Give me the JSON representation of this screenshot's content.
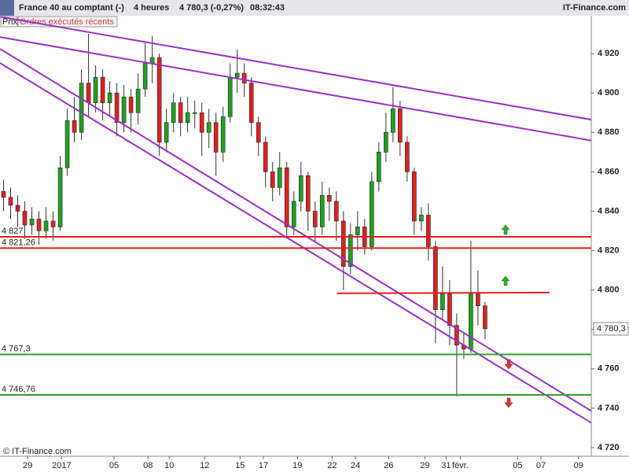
{
  "header": {
    "title": "France 40 au comptant (-)",
    "timeframe": "4 heures",
    "quote": "4 780,3 (-0,27%)",
    "time": "08:32:43",
    "site": "IT-Finance.com"
  },
  "tabs": [
    "Prix",
    "Ordres exécutés récents"
  ],
  "footer": "© IT-Finance.com",
  "chart_data": {
    "type": "candlestick",
    "x": [
      0.5,
      1.5,
      2.5,
      3.5,
      4.5,
      5.5,
      6.5,
      7.5,
      8.5,
      9.5,
      10.5,
      11.5,
      12.5,
      13.5,
      14.5,
      15.5,
      16.5,
      17.5,
      18.5,
      19.5,
      20.5,
      21.5,
      22.5,
      23.5,
      24.5,
      25.5,
      26.5,
      27.5,
      28.5,
      29.5,
      30.5,
      31.5,
      32.5,
      33.5,
      34.5,
      35.5,
      36.5,
      37.5,
      38.5,
      39.5,
      40.5,
      41.5,
      42.5,
      43.5,
      44.5,
      45.5,
      46.5,
      47.5,
      48.5,
      49.5,
      50.5,
      51.5,
      52.5,
      53.5,
      54.5,
      55.5,
      56.5,
      57.5,
      58.5,
      59.5,
      60.5,
      61.5,
      62.5,
      63.5,
      64.5,
      65.5,
      66.5,
      67.5,
      68.5
    ],
    "open": [
      4850,
      4847,
      4843,
      4840,
      4833,
      4836,
      4830,
      4835,
      4832,
      4862,
      4886,
      4880,
      4905,
      4895,
      4908,
      4895,
      4900,
      4885,
      4898,
      4890,
      4902,
      4915,
      4918,
      4875,
      4885,
      4895,
      4885,
      4890,
      4890,
      4880,
      4885,
      4870,
      4888,
      4908,
      4910,
      4905,
      4885,
      4875,
      4860,
      4852,
      4862,
      4832,
      4845,
      4858,
      4840,
      4832,
      4848,
      4845,
      4835,
      4812,
      4828,
      4832,
      4822,
      4855,
      4870,
      4880,
      4892,
      4875,
      4860,
      4835,
      4838,
      4822,
      4790,
      4798,
      4782,
      4772,
      4770,
      4798,
      4792
    ],
    "high": [
      4856,
      4852,
      4848,
      4845,
      4842,
      4840,
      4842,
      4840,
      4868,
      4892,
      4898,
      4912,
      4930,
      4914,
      4912,
      4906,
      4905,
      4904,
      4902,
      4910,
      4926,
      4929,
      4920,
      4892,
      4900,
      4898,
      4898,
      4896,
      4895,
      4892,
      4890,
      4893,
      4915,
      4922,
      4915,
      4908,
      4888,
      4878,
      4865,
      4870,
      4865,
      4850,
      4865,
      4860,
      4845,
      4855,
      4852,
      4850,
      4840,
      4834,
      4840,
      4836,
      4860,
      4875,
      4890,
      4903,
      4896,
      4878,
      4862,
      4842,
      4844,
      4825,
      4812,
      4805,
      4788,
      4778,
      4825,
      4810,
      4794
    ],
    "low": [
      4840,
      4836,
      4832,
      4826,
      4828,
      4823,
      4826,
      4825,
      4830,
      4858,
      4875,
      4876,
      4888,
      4890,
      4886,
      4888,
      4878,
      4880,
      4880,
      4884,
      4898,
      4905,
      4868,
      4870,
      4880,
      4878,
      4880,
      4882,
      4868,
      4872,
      4858,
      4865,
      4885,
      4900,
      4898,
      4878,
      4868,
      4852,
      4845,
      4848,
      4826,
      4828,
      4840,
      4830,
      4825,
      4828,
      4835,
      4825,
      4800,
      4808,
      4820,
      4818,
      4820,
      4850,
      4865,
      4875,
      4868,
      4855,
      4828,
      4830,
      4815,
      4773,
      4785,
      4772,
      4746,
      4765,
      4768,
      4782,
      4775
    ],
    "close": [
      4847,
      4843,
      4840,
      4833,
      4836,
      4830,
      4835,
      4832,
      4862,
      4886,
      4880,
      4905,
      4895,
      4908,
      4895,
      4900,
      4885,
      4898,
      4890,
      4902,
      4915,
      4918,
      4875,
      4885,
      4895,
      4885,
      4890,
      4890,
      4880,
      4885,
      4870,
      4888,
      4908,
      4910,
      4905,
      4885,
      4875,
      4860,
      4852,
      4862,
      4832,
      4845,
      4858,
      4840,
      4832,
      4848,
      4845,
      4835,
      4812,
      4828,
      4832,
      4822,
      4855,
      4870,
      4880,
      4892,
      4875,
      4860,
      4835,
      4838,
      4822,
      4790,
      4798,
      4782,
      4772,
      4770,
      4798,
      4792,
      4780.3
    ],
    "up_color": "#22a022",
    "down_color": "#dd2222",
    "xlim": [
      0,
      83.5
    ],
    "xticks": [
      {
        "value": 3.9,
        "label": "29"
      },
      {
        "value": 8.7,
        "label": "2017"
      },
      {
        "value": 16.1,
        "label": "05"
      },
      {
        "value": 20.9,
        "label": "08"
      },
      {
        "value": 23.9,
        "label": "10"
      },
      {
        "value": 28.9,
        "label": "12"
      },
      {
        "value": 33.9,
        "label": "15"
      },
      {
        "value": 37.2,
        "label": "17"
      },
      {
        "value": 42,
        "label": "19"
      },
      {
        "value": 46.9,
        "label": "22"
      },
      {
        "value": 50.2,
        "label": "24"
      },
      {
        "value": 54.9,
        "label": "26"
      },
      {
        "value": 60,
        "label": "29"
      },
      {
        "value": 63,
        "label": "31"
      },
      {
        "value": 65,
        "label": "févr."
      },
      {
        "value": 73.1,
        "label": "05"
      },
      {
        "value": 76.4,
        "label": "07"
      },
      {
        "value": 81.7,
        "label": "09"
      }
    ],
    "ylim": [
      4715.6,
      4939.2
    ],
    "yticks": [
      {
        "value": 4720,
        "label": "4 720"
      },
      {
        "value": 4740,
        "label": "4 740"
      },
      {
        "value": 4760,
        "label": "4 760"
      },
      {
        "value": 4780,
        "label": "4 780"
      },
      {
        "value": 4800,
        "label": "4 800"
      },
      {
        "value": 4820,
        "label": "4 820"
      },
      {
        "value": 4840,
        "label": "4 840"
      },
      {
        "value": 4860,
        "label": "4 860"
      },
      {
        "value": 4880,
        "label": "4 880"
      },
      {
        "value": 4900,
        "label": "4 900"
      },
      {
        "value": 4920,
        "label": "4 920"
      }
    ],
    "trendlines": [
      {
        "x": [
          0,
          86
        ],
        "y": [
          4938.7,
          4884.9
        ],
        "color": "#9b30c8"
      },
      {
        "x": [
          0,
          86
        ],
        "y": [
          4928.4,
          4874.3
        ],
        "color": "#9b30c8"
      },
      {
        "x": [
          0,
          86
        ],
        "y": [
          4922.4,
          4733.1
        ],
        "color": "#9b30c8"
      },
      {
        "x": [
          0,
          86
        ],
        "y": [
          4915.2,
          4727.1
        ],
        "color": "#9b30c8"
      },
      {
        "x": [
          47.6,
          77.6
        ],
        "y": [
          4798.3,
          4798.7
        ],
        "color": "#e02020"
      }
    ],
    "levels": [
      {
        "value": 4827,
        "label": "4 827",
        "color": "#e02020"
      },
      {
        "value": 4821.26,
        "label": "4 821,26",
        "color": "#e02020"
      },
      {
        "value": 4767.3,
        "label": "4 767,3",
        "color": "#30a030"
      },
      {
        "value": 4746.76,
        "label": "4 746,76",
        "color": "#30a030"
      }
    ],
    "last_price": {
      "value": 4780.3,
      "label": "4 780,3"
    }
  }
}
